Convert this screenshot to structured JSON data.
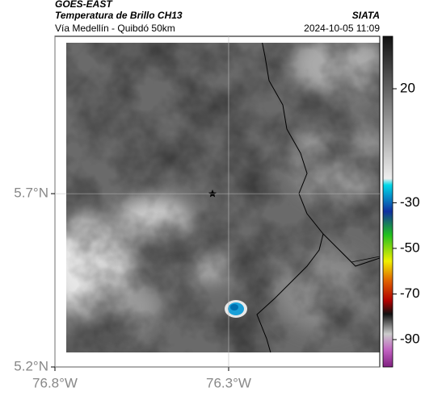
{
  "header": {
    "satellite": "GOES-EAST",
    "title": "Temperatura de Brillo CH13",
    "subtitle": "Vía Medellín - Quibdó 50km",
    "source": "SIATA",
    "datetime": "2024-10-05 11:09"
  },
  "map": {
    "xlim": [
      -76.8,
      -75.865
    ],
    "ylim": [
      5.2,
      6.154
    ],
    "xticks": [
      {
        "value": -76.8,
        "label": "76.8°W"
      },
      {
        "value": -76.3,
        "label": "76.3°W"
      }
    ],
    "yticks": [
      {
        "value": 5.2,
        "label": "5.2°N"
      },
      {
        "value": 5.7,
        "label": "5.7°N"
      }
    ]
  },
  "colorbar": {
    "clim": [
      43,
      -102
    ],
    "ticks": [
      20,
      -30,
      -50,
      -70,
      -90
    ]
  }
}
